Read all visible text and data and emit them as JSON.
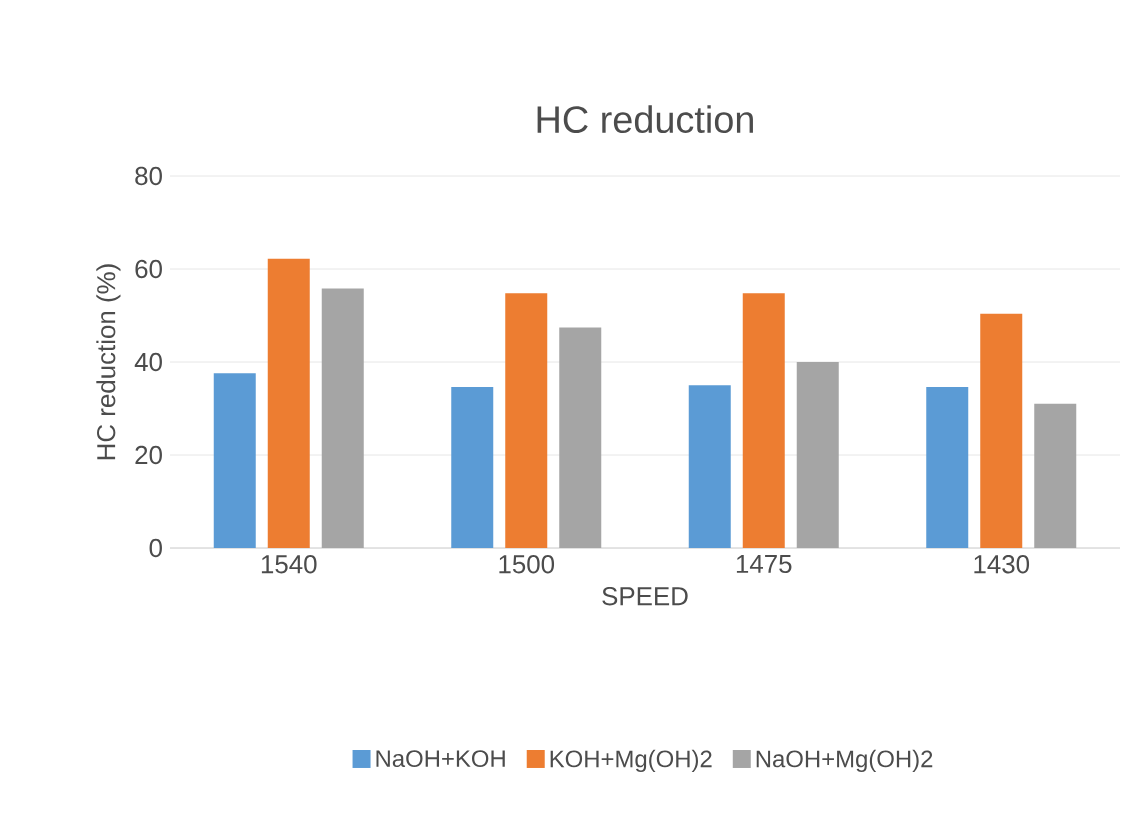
{
  "chart_data": {
    "type": "bar",
    "title": "HC reduction",
    "xlabel": "SPEED",
    "ylabel": "HC reduction (%)",
    "categories": [
      "1540",
      "1500",
      "1475",
      "1430"
    ],
    "series": [
      {
        "name": "NaOH+KOH",
        "color": "#5b9bd5",
        "values": [
          37.6,
          34.6,
          35.0,
          34.6
        ]
      },
      {
        "name": "KOH+Mg(OH)2",
        "color": "#ed7d31",
        "values": [
          62.2,
          54.8,
          54.8,
          50.4
        ]
      },
      {
        "name": "NaOH+Mg(OH)2",
        "color": "#a5a5a5",
        "values": [
          55.8,
          47.4,
          40.0,
          31.0
        ]
      }
    ],
    "ylim": [
      0,
      80
    ],
    "yticks": [
      0,
      20,
      40,
      60,
      80
    ],
    "grid": "y",
    "legend": "bottom"
  }
}
